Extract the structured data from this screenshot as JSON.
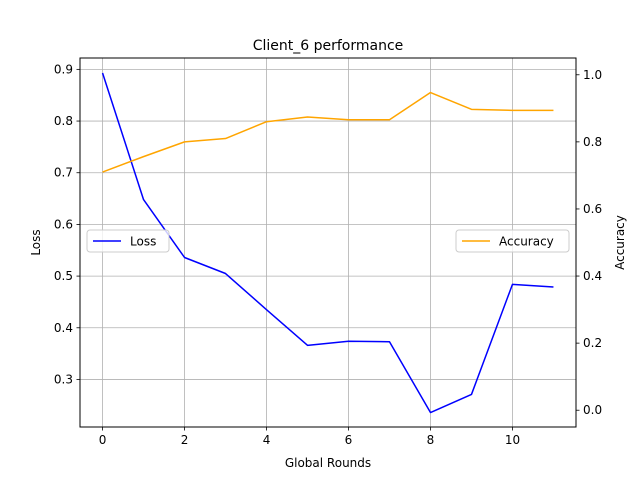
{
  "chart_data": {
    "type": "line",
    "title": "Client_6 performance",
    "xlabel": "Global Rounds",
    "ylabel_left": "Loss",
    "ylabel_right": "Accuracy",
    "x": [
      0,
      1,
      2,
      3,
      4,
      5,
      6,
      7,
      8,
      9,
      10,
      11
    ],
    "xlim": [
      -0.55,
      11.55
    ],
    "xticks": [
      0,
      2,
      4,
      6,
      8,
      10
    ],
    "ylim_left": [
      0.208,
      0.922
    ],
    "yticks_left": [
      0.3,
      0.4,
      0.5,
      0.6,
      0.7,
      0.8,
      0.9
    ],
    "ylim_right": [
      -0.05,
      1.05
    ],
    "yticks_right": [
      0.0,
      0.2,
      0.4,
      0.6,
      0.8,
      1.0
    ],
    "grid": true,
    "series": [
      {
        "name": "Loss",
        "axis": "left",
        "color": "#0000ff",
        "values": [
          0.893,
          0.648,
          0.536,
          0.505,
          0.435,
          0.366,
          0.374,
          0.373,
          0.236,
          0.271,
          0.484,
          0.479
        ]
      },
      {
        "name": "Accuracy",
        "axis": "right",
        "color": "#ffa500",
        "values": [
          0.71,
          0.756,
          0.8,
          0.81,
          0.86,
          0.874,
          0.866,
          0.866,
          0.947,
          0.897,
          0.894,
          0.894
        ]
      }
    ],
    "legends": [
      {
        "placement": "center-left",
        "series": "Loss"
      },
      {
        "placement": "center-right",
        "series": "Accuracy"
      }
    ]
  }
}
